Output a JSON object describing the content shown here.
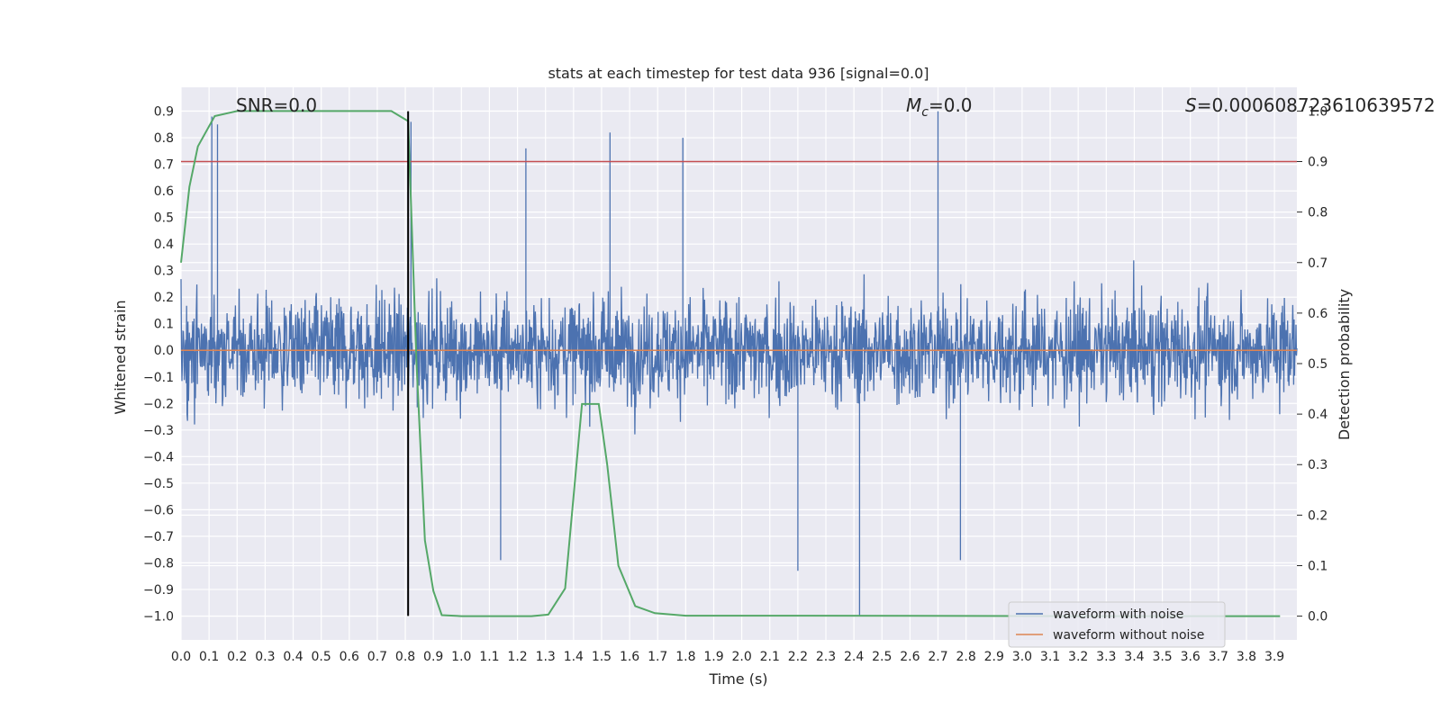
{
  "chart_data": {
    "type": "line",
    "title": "stats at each timestep for test data 936 [signal=0.0]",
    "xlabel": "Time (s)",
    "ylabel": "Whitened strain",
    "y2label": "Detection probability",
    "xlim": [
      0.0,
      3.98
    ],
    "ylim": [
      -1.09,
      0.99
    ],
    "y2lim": [
      -0.047,
      1.047
    ],
    "x_ticks": [
      "0.0",
      "0.1",
      "0.2",
      "0.3",
      "0.4",
      "0.5",
      "0.6",
      "0.7",
      "0.8",
      "0.9",
      "1.0",
      "1.1",
      "1.2",
      "1.3",
      "1.4",
      "1.5",
      "1.6",
      "1.7",
      "1.8",
      "1.9",
      "2.0",
      "2.1",
      "2.2",
      "2.3",
      "2.4",
      "2.5",
      "2.6",
      "2.7",
      "2.8",
      "2.9",
      "3.0",
      "3.1",
      "3.2",
      "3.3",
      "3.4",
      "3.5",
      "3.6",
      "3.7",
      "3.8",
      "3.9"
    ],
    "y_ticks": [
      "0.9",
      "0.8",
      "0.7",
      "0.6",
      "0.5",
      "0.4",
      "0.3",
      "0.2",
      "0.1",
      "0.0",
      "−0.1",
      "−0.2",
      "−0.3",
      "−0.4",
      "−0.5",
      "−0.6",
      "−0.7",
      "−0.8",
      "−0.9",
      "−1.0"
    ],
    "y2_ticks": [
      "1.0",
      "0.9",
      "0.8",
      "0.7",
      "0.6",
      "0.5",
      "0.4",
      "0.3",
      "0.2",
      "0.1",
      "0.0"
    ],
    "annotations": {
      "snr": "SNR=0.0",
      "mc_symbol": "M",
      "mc_sub": "c",
      "mc_value": "=0.0",
      "s_symbol": "S",
      "s_value": "=0.000608723610639572"
    },
    "series": [
      {
        "name": "waveform with noise",
        "color": "#4c72b0",
        "style": "noise",
        "amplitude_range": [
          -1.0,
          0.9
        ],
        "peaks": [
          {
            "x": 0.11,
            "y": 0.88
          },
          {
            "x": 0.13,
            "y": 0.85
          },
          {
            "x": 0.82,
            "y": 0.86
          },
          {
            "x": 1.23,
            "y": 0.76
          },
          {
            "x": 1.53,
            "y": 0.82
          },
          {
            "x": 1.79,
            "y": 0.8
          },
          {
            "x": 2.7,
            "y": 0.9
          },
          {
            "x": 2.42,
            "y": -1.0
          },
          {
            "x": 2.2,
            "y": -0.83
          },
          {
            "x": 1.14,
            "y": -0.79
          },
          {
            "x": 2.78,
            "y": -0.79
          }
        ]
      },
      {
        "name": "waveform without noise",
        "color": "#dd8452",
        "x": [
          0.0,
          3.98
        ],
        "y": [
          0.0,
          0.0
        ]
      },
      {
        "name": "detection probability",
        "color": "#55a868",
        "axis": "right",
        "x": [
          0.0,
          0.03,
          0.06,
          0.12,
          0.2,
          0.3,
          0.5,
          0.7,
          0.75,
          0.81,
          0.84,
          0.87,
          0.9,
          0.93,
          1.0,
          1.25,
          1.31,
          1.37,
          1.43,
          1.49,
          1.52,
          1.56,
          1.62,
          1.69,
          1.8,
          2.2,
          3.2,
          3.92
        ],
        "y": [
          0.7,
          0.85,
          0.93,
          0.99,
          1.0,
          1.0,
          1.0,
          1.0,
          1.0,
          0.98,
          0.5,
          0.15,
          0.05,
          0.002,
          0.0,
          0.0,
          0.003,
          0.055,
          0.42,
          0.42,
          0.3,
          0.1,
          0.02,
          0.006,
          0.001,
          0.001,
          0.0,
          0.0
        ]
      }
    ],
    "threshold_line": {
      "axis": "right",
      "value": 0.9,
      "color": "#c44e52"
    },
    "marker_line": {
      "x": 0.81,
      "y_from": -1.0,
      "y_to": 0.9,
      "color": "#000000"
    },
    "legend": {
      "location": "lower-right",
      "entries": [
        {
          "label": "waveform with noise",
          "color": "#4c72b0"
        },
        {
          "label": "waveform without noise",
          "color": "#dd8452"
        }
      ]
    }
  }
}
